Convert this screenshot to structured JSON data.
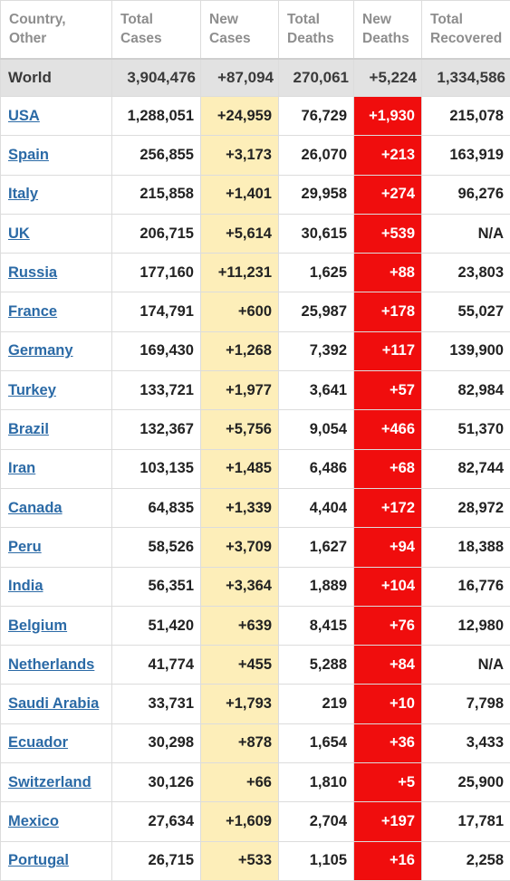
{
  "headers": [
    [
      "Country,",
      "Other"
    ],
    [
      "Total",
      "Cases"
    ],
    [
      "New",
      "Cases"
    ],
    [
      "Total",
      "Deaths"
    ],
    [
      "New",
      "Deaths"
    ],
    [
      "Total",
      "Recovered"
    ]
  ],
  "world": [
    "World",
    "3,904,476",
    "+87,094",
    "270,061",
    "+5,224",
    "1,334,586"
  ],
  "rows": [
    [
      "USA",
      "1,288,051",
      "+24,959",
      "76,729",
      "+1,930",
      "215,078"
    ],
    [
      "Spain",
      "256,855",
      "+3,173",
      "26,070",
      "+213",
      "163,919"
    ],
    [
      "Italy",
      "215,858",
      "+1,401",
      "29,958",
      "+274",
      "96,276"
    ],
    [
      "UK",
      "206,715",
      "+5,614",
      "30,615",
      "+539",
      "N/A"
    ],
    [
      "Russia",
      "177,160",
      "+11,231",
      "1,625",
      "+88",
      "23,803"
    ],
    [
      "France",
      "174,791",
      "+600",
      "25,987",
      "+178",
      "55,027"
    ],
    [
      "Germany",
      "169,430",
      "+1,268",
      "7,392",
      "+117",
      "139,900"
    ],
    [
      "Turkey",
      "133,721",
      "+1,977",
      "3,641",
      "+57",
      "82,984"
    ],
    [
      "Brazil",
      "132,367",
      "+5,756",
      "9,054",
      "+466",
      "51,370"
    ],
    [
      "Iran",
      "103,135",
      "+1,485",
      "6,486",
      "+68",
      "82,744"
    ],
    [
      "Canada",
      "64,835",
      "+1,339",
      "4,404",
      "+172",
      "28,972"
    ],
    [
      "Peru",
      "58,526",
      "+3,709",
      "1,627",
      "+94",
      "18,388"
    ],
    [
      "India",
      "56,351",
      "+3,364",
      "1,889",
      "+104",
      "16,776"
    ],
    [
      "Belgium",
      "51,420",
      "+639",
      "8,415",
      "+76",
      "12,980"
    ],
    [
      "Netherlands",
      "41,774",
      "+455",
      "5,288",
      "+84",
      "N/A"
    ],
    [
      "Saudi Arabia",
      "33,731",
      "+1,793",
      "219",
      "+10",
      "7,798"
    ],
    [
      "Ecuador",
      "30,298",
      "+878",
      "1,654",
      "+36",
      "3,433"
    ],
    [
      "Switzerland",
      "30,126",
      "+66",
      "1,810",
      "+5",
      "25,900"
    ],
    [
      "Mexico",
      "27,634",
      "+1,609",
      "2,704",
      "+197",
      "17,781"
    ],
    [
      "Portugal",
      "26,715",
      "+533",
      "1,105",
      "+16",
      "2,258"
    ]
  ],
  "colors": {
    "new_cases_bg": "#fdeeb9",
    "new_deaths_bg": "#f00d0d",
    "world_row_bg": "#e2e2e2",
    "link": "#2b6aa6",
    "header_text": "#8e8e8e"
  }
}
